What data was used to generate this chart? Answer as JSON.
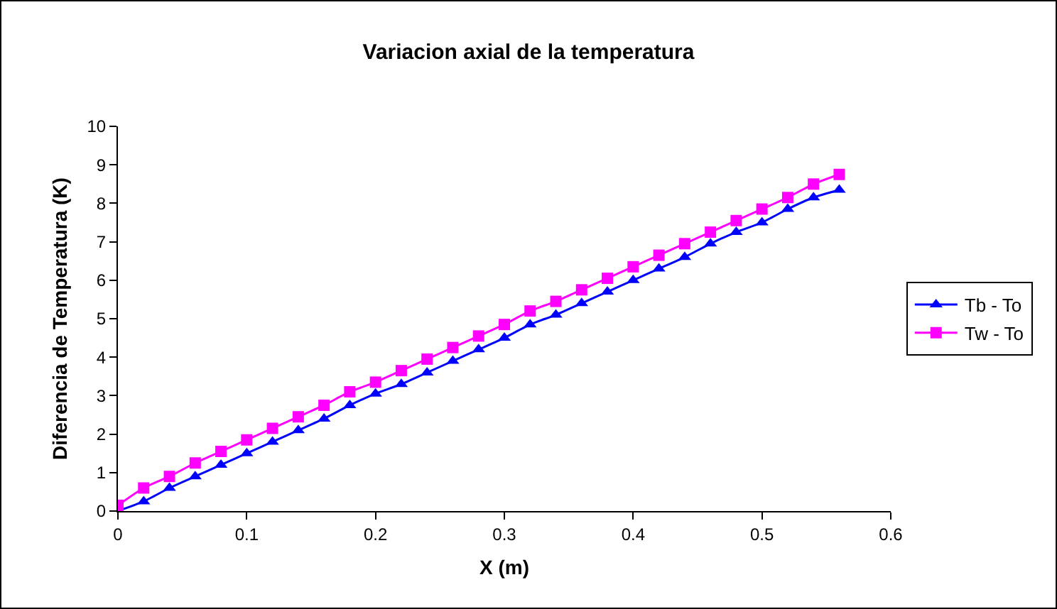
{
  "chart_data": {
    "type": "line",
    "title": "Variacion axial de la temperatura",
    "xlabel": "X (m)",
    "ylabel": "Diferencia de Temperatura (K)",
    "x": [
      0,
      0.02,
      0.04,
      0.06,
      0.08,
      0.1,
      0.12,
      0.14,
      0.16,
      0.18,
      0.2,
      0.22,
      0.24,
      0.26,
      0.28,
      0.3,
      0.32,
      0.34,
      0.36,
      0.38,
      0.4,
      0.42,
      0.44,
      0.46,
      0.48,
      0.5,
      0.52,
      0.54,
      0.56
    ],
    "series": [
      {
        "name": "Tb - To",
        "color": "#0000ff",
        "marker": "triangle",
        "values": [
          0,
          0.25,
          0.6,
          0.9,
          1.2,
          1.5,
          1.8,
          2.1,
          2.4,
          2.75,
          3.05,
          3.3,
          3.6,
          3.9,
          4.2,
          4.5,
          4.85,
          5.1,
          5.4,
          5.7,
          6.0,
          6.3,
          6.6,
          6.95,
          7.25,
          7.5,
          7.85,
          8.15,
          8.35
        ]
      },
      {
        "name": "Tw - To",
        "color": "#ff00ff",
        "marker": "square",
        "values": [
          0.15,
          0.6,
          0.9,
          1.25,
          1.55,
          1.85,
          2.15,
          2.45,
          2.75,
          3.1,
          3.35,
          3.65,
          3.95,
          4.25,
          4.55,
          4.85,
          5.2,
          5.45,
          5.75,
          6.05,
          6.35,
          6.65,
          6.95,
          7.25,
          7.55,
          7.85,
          8.15,
          8.5,
          8.75
        ]
      }
    ],
    "xlim": [
      0,
      0.6
    ],
    "xticks": [
      0,
      0.1,
      0.2,
      0.3,
      0.4,
      0.5,
      0.6
    ],
    "ylim": [
      0,
      10
    ],
    "yticks": [
      0,
      1,
      2,
      3,
      4,
      5,
      6,
      7,
      8,
      9,
      10
    ],
    "grid": false,
    "legend": "right",
    "line_style": "solid"
  }
}
